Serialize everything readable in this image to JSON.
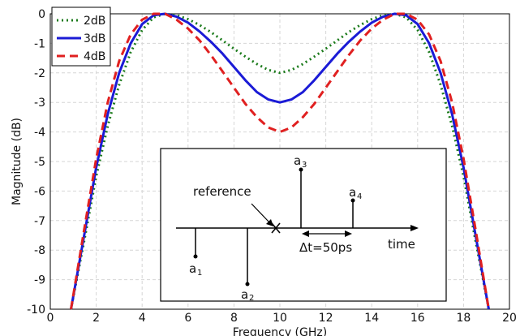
{
  "chart_data": {
    "type": "line",
    "xlabel": "Frequency (GHz)",
    "ylabel": "Magnitude (dB)",
    "xlim": [
      0,
      20
    ],
    "ylim": [
      -10,
      0
    ],
    "xticks": [
      "0",
      "2",
      "4",
      "6",
      "8",
      "10",
      "12",
      "14",
      "16",
      "18",
      "20"
    ],
    "yticks": [
      "0",
      "-1",
      "-2",
      "-3",
      "-4",
      "-5",
      "-6",
      "-7",
      "-8",
      "-9",
      "-10"
    ],
    "grid": true,
    "legend_position": "top-left",
    "x": [
      0.9,
      1.5,
      2,
      2.5,
      3,
      3.5,
      4,
      4.5,
      5,
      5.5,
      6,
      6.5,
      7,
      7.5,
      8,
      8.5,
      9,
      9.5,
      10,
      10.5,
      11,
      11.5,
      12,
      12.5,
      13,
      13.5,
      14,
      14.5,
      15,
      15.5,
      16,
      16.5,
      17,
      17.5,
      18,
      18.5,
      19.1
    ],
    "series": [
      {
        "name": "2dB",
        "color": "#1a7a1a",
        "dash": "dotted",
        "values": [
          -10,
          -7.6,
          -5.5,
          -3.8,
          -2.4,
          -1.3,
          -0.55,
          -0.12,
          0,
          -0.05,
          -0.18,
          -0.38,
          -0.62,
          -0.9,
          -1.18,
          -1.45,
          -1.7,
          -1.9,
          -2.0,
          -1.9,
          -1.7,
          -1.45,
          -1.18,
          -0.9,
          -0.62,
          -0.38,
          -0.18,
          -0.05,
          0,
          -0.12,
          -0.55,
          -1.3,
          -2.4,
          -3.8,
          -5.5,
          -7.6,
          -10
        ]
      },
      {
        "name": "3dB",
        "color": "#1b1bd6",
        "dash": "solid",
        "values": [
          -10,
          -7.4,
          -5.2,
          -3.4,
          -2.0,
          -1.0,
          -0.35,
          -0.05,
          0,
          -0.1,
          -0.3,
          -0.6,
          -0.95,
          -1.35,
          -1.8,
          -2.25,
          -2.65,
          -2.9,
          -3.0,
          -2.9,
          -2.65,
          -2.25,
          -1.8,
          -1.35,
          -0.95,
          -0.6,
          -0.3,
          -0.1,
          0,
          -0.05,
          -0.35,
          -1.0,
          -2.0,
          -3.4,
          -5.2,
          -7.4,
          -10
        ]
      },
      {
        "name": "4dB",
        "color": "#e02020",
        "dash": "dashed",
        "values": [
          -10,
          -7.2,
          -4.9,
          -3.0,
          -1.6,
          -0.7,
          -0.2,
          0,
          0,
          -0.2,
          -0.5,
          -0.9,
          -1.4,
          -1.95,
          -2.5,
          -3.05,
          -3.5,
          -3.85,
          -4.0,
          -3.85,
          -3.5,
          -3.05,
          -2.5,
          -1.95,
          -1.4,
          -0.9,
          -0.5,
          -0.2,
          0,
          0,
          -0.2,
          -0.7,
          -1.6,
          -3.0,
          -4.9,
          -7.2,
          -10
        ]
      }
    ],
    "inset": {
      "reference_label": "reference",
      "delta_label": "Δt=50ps",
      "time_label": "time",
      "taps": [
        {
          "letter": "a",
          "sub": "1"
        },
        {
          "letter": "a",
          "sub": "2"
        },
        {
          "letter": "a",
          "sub": "3"
        },
        {
          "letter": "a",
          "sub": "4"
        }
      ]
    }
  }
}
